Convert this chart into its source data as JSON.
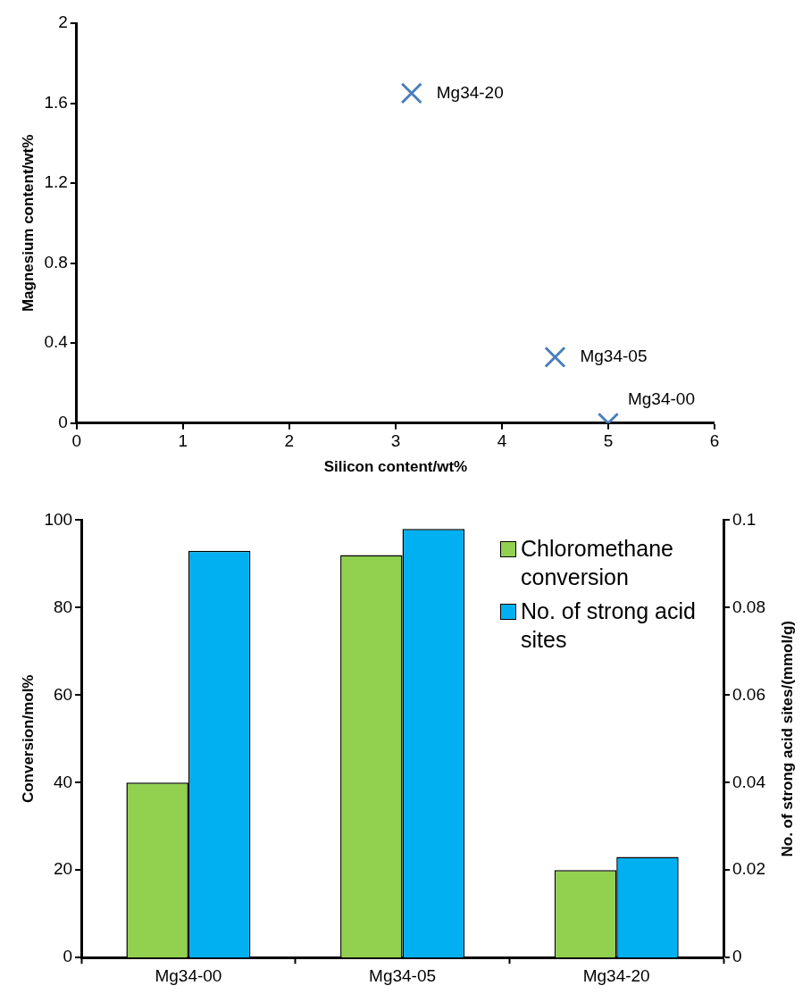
{
  "chart_data": [
    {
      "type": "scatter",
      "xlabel": "Silicon content/wt%",
      "ylabel": "Magnesium content/wt%",
      "series": [
        {
          "color": "#4a7ebb",
          "x": [
            5.0,
            4.5,
            3.15
          ],
          "values": [
            0.0,
            0.33,
            1.65
          ]
        }
      ],
      "marker": "cross",
      "xlim": [
        0,
        6
      ],
      "xticks": [
        0,
        1,
        2,
        3,
        4,
        5,
        6
      ],
      "ylim": [
        0,
        2
      ],
      "yticks": [
        0,
        0.4,
        0.8,
        1.2,
        1.6,
        2
      ],
      "grid": false,
      "legend": false,
      "annotations": [
        {
          "text": "Mg34-00",
          "x": 5.0,
          "y": 0.0
        },
        {
          "text": "Mg34-05",
          "x": 4.5,
          "y": 0.33
        },
        {
          "text": "Mg34-20",
          "x": 3.15,
          "y": 1.65
        }
      ]
    },
    {
      "type": "bar",
      "categories": [
        "Mg34-00",
        "Mg34-05",
        "Mg34-20"
      ],
      "ylabel": "Conversion/mol%",
      "y2label": "No. of strong acid sites/(mmol/g)",
      "series": [
        {
          "name": "Chloromethane conversion",
          "color": "#92d050",
          "values": [
            40,
            92,
            20
          ]
        },
        {
          "name": "No. of strong acid sites",
          "color": "#00b0f0",
          "values": [
            0.093,
            0.098,
            0.023
          ],
          "axis": "y2"
        }
      ],
      "ylim": [
        0,
        100
      ],
      "yticks": [
        0,
        20,
        40,
        60,
        80,
        100
      ],
      "y2lim": [
        0,
        0.1
      ],
      "y2ticks": [
        0,
        0.02,
        0.04,
        0.06,
        0.08,
        0.1
      ],
      "grid": false,
      "legend": "top right"
    }
  ]
}
